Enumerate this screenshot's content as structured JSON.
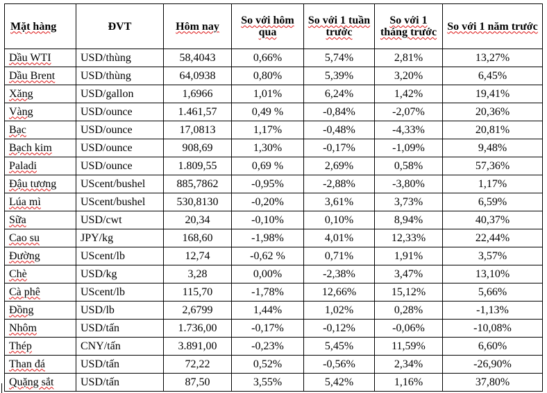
{
  "header": {
    "item": "Mặt hàng",
    "unit": "ĐVT",
    "today": "Hôm nay",
    "vs_yesterday": "So với hôm qua",
    "vs_week": "So với 1 tuần trước",
    "vs_month": "So với 1 tháng trước",
    "vs_year": "So với 1 năm trước"
  },
  "rows": [
    {
      "item": "Dầu WTI",
      "unit": "USD/thùng",
      "today": "58,4043",
      "d": "0,66%",
      "w": "5,74%",
      "m": "2,81%",
      "y": "13,27%"
    },
    {
      "item": "Dầu Brent",
      "unit": "USD/thùng",
      "today": "64,0938",
      "d": "0,80%",
      "w": "5,39%",
      "m": "3,20%",
      "y": "6,45%"
    },
    {
      "item": "Xăng",
      "unit": "USD/gallon",
      "today": "1,6966",
      "d": "1,01%",
      "w": "6,24%",
      "m": "1,42%",
      "y": "19,41%"
    },
    {
      "item": "Vàng",
      "unit": "USD/ounce",
      "today": "1.461,57",
      "d": "0,49 %",
      "w": "-0,84%",
      "m": "-2,07%",
      "y": "20,36%"
    },
    {
      "item": "Bạc",
      "unit": "USD/ounce",
      "today": "17,0813",
      "d": "1,17%",
      "w": "-0,48%",
      "m": "-4,33%",
      "y": "20,81%"
    },
    {
      "item": "Bạch kim",
      "unit": "USD/ounce",
      "today": "908,69",
      "d": "1,30%",
      "w": "-0,17%",
      "m": "-1,09%",
      "y": "9,48%"
    },
    {
      "item": "Paladi",
      "unit": "USD/ounce",
      "today": "1.809,55",
      "d": "0,69 %",
      "w": "2,69%",
      "m": "0,58%",
      "y": "57,36%"
    },
    {
      "item": "Đậu tương",
      "unit": "UScent/bushel",
      "today": "885,7862",
      "d": "-0,95%",
      "w": "-2,88%",
      "m": "-3,80%",
      "y": "1,17%"
    },
    {
      "item": "Lúa mì",
      "unit": "UScent/bushel",
      "today": "530,8130",
      "d": "-0,20%",
      "w": "3,61%",
      "m": "3,73%",
      "y": "6,59%"
    },
    {
      "item": "Sữa",
      "unit": "USD/cwt",
      "today": "20,34",
      "d": "-0,10%",
      "w": "0,10%",
      "m": "8,94%",
      "y": "40,37%"
    },
    {
      "item": "Cao su",
      "unit": "JPY/kg",
      "today": "168,60",
      "d": "-1,98%",
      "w": "4,01%",
      "m": "12,33%",
      "y": "22,44%"
    },
    {
      "item": "Đường",
      "unit": "UScent/lb",
      "today": "12,74",
      "d": "-0,62 %",
      "w": "0,71%",
      "m": "1,91%",
      "y": "3,57%"
    },
    {
      "item": "Chè",
      "unit": "USD/kg",
      "today": "3,28",
      "d": "0,00%",
      "w": "-2,38%",
      "m": "3,47%",
      "y": "13,10%"
    },
    {
      "item": "Cà phê",
      "unit": "UScent/lb",
      "today": "115,70",
      "d": "-1,78%",
      "w": "12,66%",
      "m": "15,12%",
      "y": "5,66%"
    },
    {
      "item": "Đồng",
      "unit": "USD/lb",
      "today": "2,6799",
      "d": "1,44%",
      "w": "1,02%",
      "m": "0,28%",
      "y": "-1,13%"
    },
    {
      "item": "Nhôm",
      "unit": "USD/tấn",
      "today": "1.736,00",
      "d": "-0,17%",
      "w": "-0,12%",
      "m": "-0,06%",
      "y": "-10,08%"
    },
    {
      "item": "Thép",
      "unit": "CNY/tấn",
      "today": "3.891,00",
      "d": "-0,23%",
      "w": "5,45%",
      "m": "11,59%",
      "y": "6,60%"
    },
    {
      "item": "Than đá",
      "unit": "USD/tấn",
      "today": "72,22",
      "d": "0,52%",
      "w": "-0,56%",
      "m": "2,34%",
      "y": "-26,90%"
    },
    {
      "item": "Quặng sắt",
      "unit": "USD/tấn",
      "today": "87,50",
      "d": "3,55%",
      "w": "5,42%",
      "m": "1,16%",
      "y": "37,80%"
    }
  ]
}
